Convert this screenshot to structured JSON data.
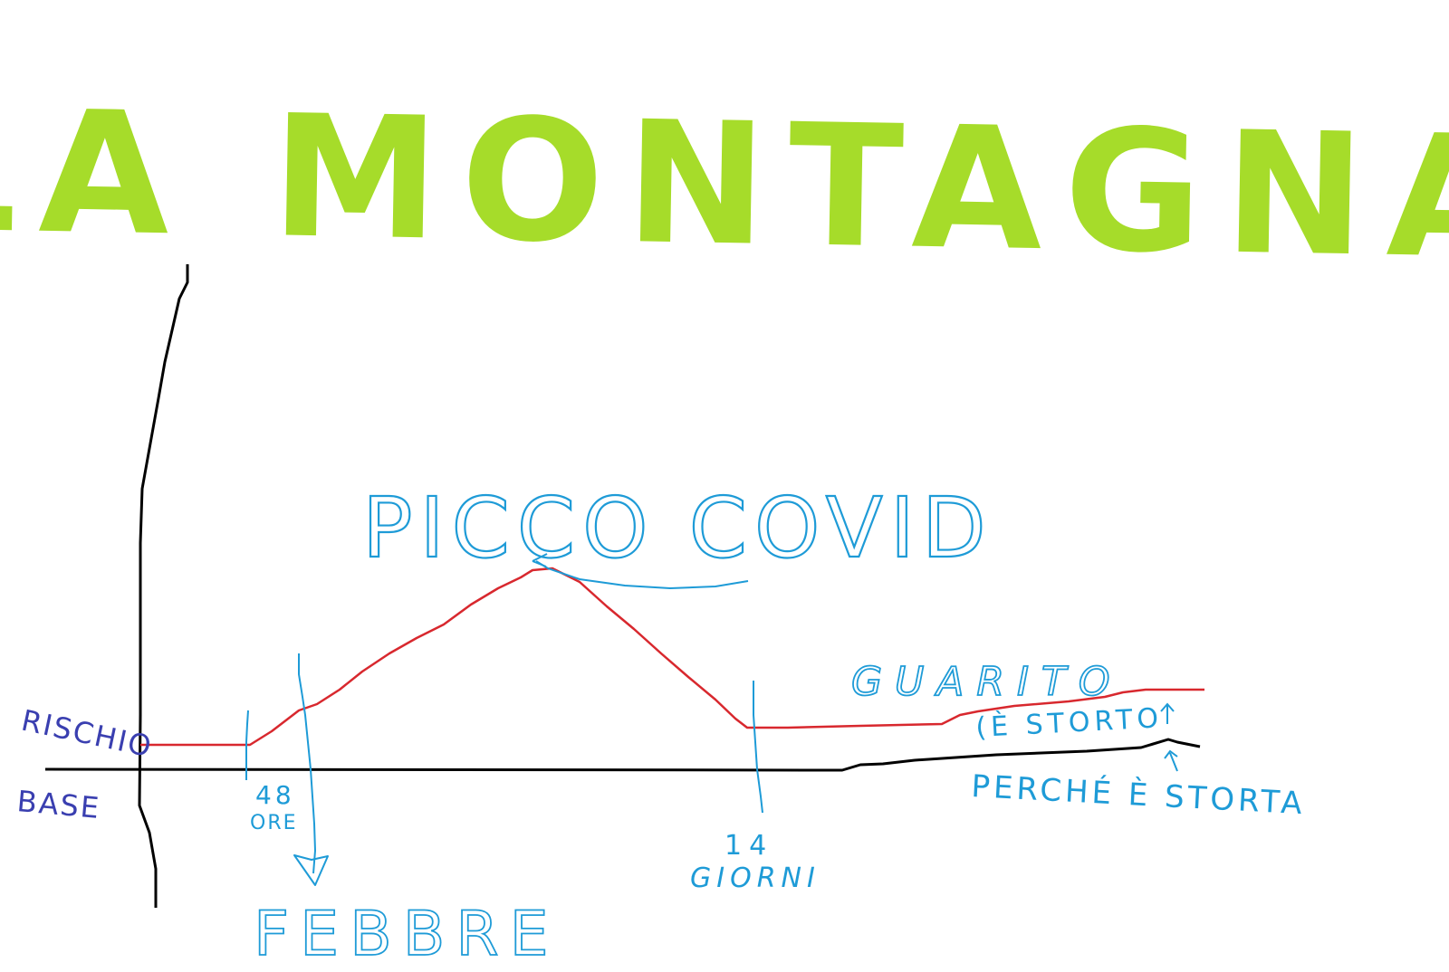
{
  "title": "LA MONTAGNA",
  "colors": {
    "title": "#A6DC2A",
    "axis": "#000000",
    "curve": "#D8282E",
    "annotation": "#1E9BD7",
    "baseline_label": "#3A3FB0"
  },
  "labels": {
    "peak": "PICCO COVID",
    "healed": "GUARITO",
    "crooked": "(È STORTO",
    "why_crooked": "PERCHÉ È STORTA",
    "hours": "48",
    "hours_unit": "ORE",
    "days": "14",
    "days_unit": "GIORNI",
    "fever": "FEBBRE",
    "baseline_risk": "RISCHIO",
    "baseline_base": "BASE"
  }
}
